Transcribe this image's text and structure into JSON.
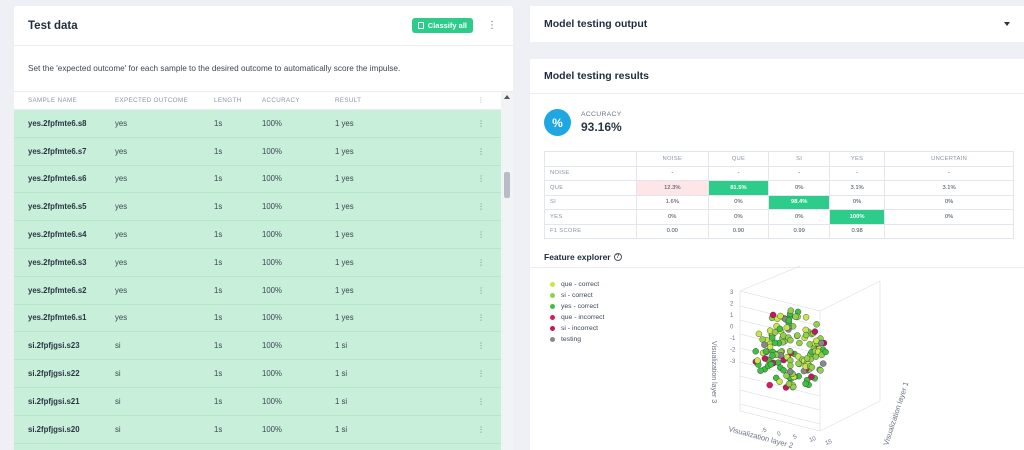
{
  "test_data": {
    "title": "Test data",
    "classify_label": "Classify all",
    "description": "Set the 'expected outcome' for each sample to the desired outcome to automatically score the impulse.",
    "columns": [
      "SAMPLE NAME",
      "EXPECTED OUTCOME",
      "LENGTH",
      "ACCURACY",
      "RESULT"
    ],
    "rows": [
      {
        "name": "yes.2fpfmte6.s8",
        "expected": "yes",
        "length": "1s",
        "accuracy": "100%",
        "result": "1 yes"
      },
      {
        "name": "yes.2fpfmte6.s7",
        "expected": "yes",
        "length": "1s",
        "accuracy": "100%",
        "result": "1 yes"
      },
      {
        "name": "yes.2fpfmte6.s6",
        "expected": "yes",
        "length": "1s",
        "accuracy": "100%",
        "result": "1 yes"
      },
      {
        "name": "yes.2fpfmte6.s5",
        "expected": "yes",
        "length": "1s",
        "accuracy": "100%",
        "result": "1 yes"
      },
      {
        "name": "yes.2fpfmte6.s4",
        "expected": "yes",
        "length": "1s",
        "accuracy": "100%",
        "result": "1 yes"
      },
      {
        "name": "yes.2fpfmte6.s3",
        "expected": "yes",
        "length": "1s",
        "accuracy": "100%",
        "result": "1 yes"
      },
      {
        "name": "yes.2fpfmte6.s2",
        "expected": "yes",
        "length": "1s",
        "accuracy": "100%",
        "result": "1 yes"
      },
      {
        "name": "yes.2fpfmte6.s1",
        "expected": "yes",
        "length": "1s",
        "accuracy": "100%",
        "result": "1 yes"
      },
      {
        "name": "si.2fpfjgsi.s23",
        "expected": "si",
        "length": "1s",
        "accuracy": "100%",
        "result": "1 si"
      },
      {
        "name": "si.2fpfjgsi.s22",
        "expected": "si",
        "length": "1s",
        "accuracy": "100%",
        "result": "1 si"
      },
      {
        "name": "si.2fpfjgsi.s21",
        "expected": "si",
        "length": "1s",
        "accuracy": "100%",
        "result": "1 si"
      },
      {
        "name": "si.2fpfjgsi.s20",
        "expected": "si",
        "length": "1s",
        "accuracy": "100%",
        "result": "1 si"
      }
    ]
  },
  "output_panel": {
    "title": "Model testing output"
  },
  "results": {
    "title": "Model testing results",
    "accuracy_label": "ACCURACY",
    "accuracy_value": "93.16%",
    "accuracy_icon": "percent-icon",
    "matrix": {
      "columns": [
        "NOISE",
        "QUE",
        "SI",
        "YES",
        "UNCERTAIN"
      ],
      "rows": [
        {
          "label": "NOISE",
          "cells": [
            "-",
            "-",
            "-",
            "-",
            "-"
          ],
          "styles": [
            "",
            "",
            "",
            "",
            ""
          ]
        },
        {
          "label": "QUE",
          "cells": [
            "12.3%",
            "81.5%",
            "0%",
            "3.1%",
            "3.1%"
          ],
          "styles": [
            "pink",
            "green",
            "",
            "",
            ""
          ]
        },
        {
          "label": "SI",
          "cells": [
            "1.6%",
            "0%",
            "98.4%",
            "0%",
            "0%"
          ],
          "styles": [
            "",
            "",
            "green",
            "",
            ""
          ]
        },
        {
          "label": "YES",
          "cells": [
            "0%",
            "0%",
            "0%",
            "100%",
            "0%"
          ],
          "styles": [
            "",
            "",
            "",
            "green",
            ""
          ]
        },
        {
          "label": "F1 SCORE",
          "cells": [
            "0.00",
            "0.90",
            "0.99",
            "0.98",
            ""
          ],
          "styles": [
            "",
            "",
            "",
            "",
            ""
          ]
        }
      ]
    },
    "feature_explorer": {
      "title": "Feature explorer",
      "legend": [
        {
          "label": "que - correct",
          "color": "#c6e64a"
        },
        {
          "label": "si - correct",
          "color": "#8fd14a"
        },
        {
          "label": "yes - correct",
          "color": "#3fbf3f"
        },
        {
          "label": "que - incorrect",
          "color": "#d81b60"
        },
        {
          "label": "si - incorrect",
          "color": "#c2185b"
        },
        {
          "label": "testing",
          "color": "#888888"
        }
      ],
      "axes": {
        "x_label": "Visualization layer 2",
        "y_label": "Visualization layer 1",
        "z_label": "Visualization layer 3",
        "z_ticks": [
          "3",
          "2",
          "1",
          "0",
          "-1",
          "-2",
          "-3"
        ],
        "x_ticks": [
          "-5",
          "0",
          "5",
          "10",
          "15"
        ]
      }
    }
  }
}
